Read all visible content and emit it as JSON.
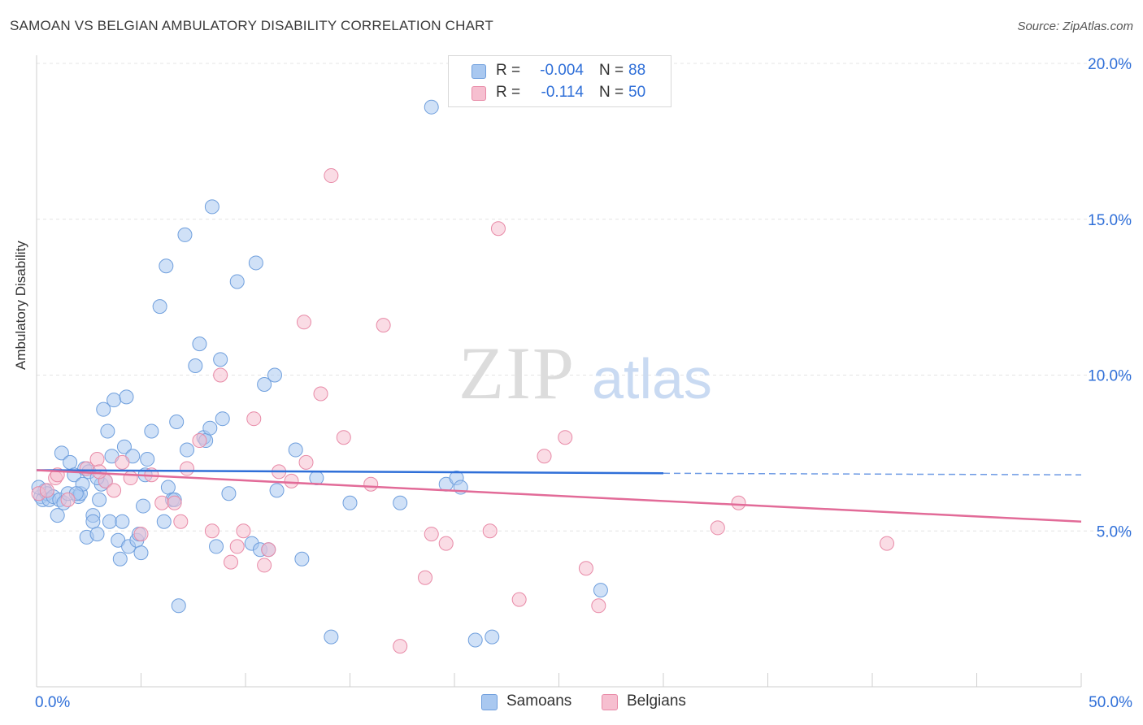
{
  "title": "SAMOAN VS BELGIAN AMBULATORY DISABILITY CORRELATION CHART",
  "source": "Source: ZipAtlas.com",
  "watermark": {
    "zip": "ZIP",
    "atlas": "atlas"
  },
  "legend": {
    "rows": [
      {
        "r_label": "R =",
        "r_value": "-0.004",
        "n_label": "N =",
        "n_value": "88",
        "color": "#a9c8f0",
        "border": "#6f9fdd"
      },
      {
        "r_label": "R =",
        "r_value": "-0.114",
        "n_label": "N =",
        "n_value": "50",
        "color": "#f6bfd0",
        "border": "#e88aa7"
      }
    ]
  },
  "bottom_legend": [
    {
      "label": "Samoans",
      "color": "#a9c8f0",
      "border": "#6f9fdd"
    },
    {
      "label": "Belgians",
      "color": "#f6bfd0",
      "border": "#e88aa7"
    }
  ],
  "chart_data": {
    "type": "scatter",
    "title": "SAMOAN VS BELGIAN AMBULATORY DISABILITY CORRELATION CHART",
    "xlabel": "",
    "ylabel": "Ambulatory Disability",
    "xlim": [
      0,
      50
    ],
    "ylim": [
      0,
      20
    ],
    "x_tick_labels": [
      {
        "value": 0,
        "label": "0.0%"
      },
      {
        "value": 50,
        "label": "50.0%"
      }
    ],
    "y_tick_labels": [
      {
        "value": 5,
        "label": "5.0%"
      },
      {
        "value": 10,
        "label": "10.0%"
      },
      {
        "value": 15,
        "label": "15.0%"
      },
      {
        "value": 20,
        "label": "20.0%"
      }
    ],
    "grid": true,
    "colors": {
      "samoans": "#2f6fd8",
      "belgians": "#e26b98",
      "axis_label": "#2f6fd8"
    },
    "series": [
      {
        "name": "Samoans",
        "color": "#a9c8f0",
        "edge": "#6f9fdd",
        "trend": {
          "x0": 0,
          "y0": 6.95,
          "x1": 30,
          "y1": 6.85,
          "dash_to": 50,
          "dash_y": 6.8,
          "color": "#2f6fd8"
        },
        "points": [
          [
            0.2,
            6.1
          ],
          [
            0.3,
            6.0
          ],
          [
            0.4,
            6.3
          ],
          [
            0.5,
            6.2
          ],
          [
            0.6,
            6.0
          ],
          [
            0.8,
            6.1
          ],
          [
            1.0,
            5.5
          ],
          [
            1.1,
            6.0
          ],
          [
            1.2,
            7.5
          ],
          [
            1.3,
            5.9
          ],
          [
            1.5,
            6.2
          ],
          [
            1.6,
            7.2
          ],
          [
            1.8,
            6.8
          ],
          [
            2.0,
            6.1
          ],
          [
            2.1,
            6.2
          ],
          [
            2.2,
            6.5
          ],
          [
            2.3,
            7.0
          ],
          [
            2.4,
            4.8
          ],
          [
            2.5,
            6.9
          ],
          [
            2.7,
            5.5
          ],
          [
            2.7,
            5.3
          ],
          [
            2.9,
            4.9
          ],
          [
            3.0,
            6.0
          ],
          [
            3.1,
            6.5
          ],
          [
            3.2,
            8.9
          ],
          [
            3.3,
            6.6
          ],
          [
            3.4,
            8.2
          ],
          [
            3.5,
            5.3
          ],
          [
            3.6,
            7.4
          ],
          [
            3.7,
            9.2
          ],
          [
            3.9,
            4.7
          ],
          [
            4.0,
            4.1
          ],
          [
            4.1,
            5.3
          ],
          [
            4.2,
            7.7
          ],
          [
            4.3,
            9.3
          ],
          [
            4.4,
            4.5
          ],
          [
            4.6,
            7.4
          ],
          [
            4.8,
            4.7
          ],
          [
            5.0,
            4.3
          ],
          [
            5.1,
            5.8
          ],
          [
            5.2,
            6.8
          ],
          [
            5.3,
            7.3
          ],
          [
            5.5,
            8.2
          ],
          [
            5.9,
            12.2
          ],
          [
            6.1,
            5.3
          ],
          [
            6.2,
            13.5
          ],
          [
            6.3,
            6.4
          ],
          [
            6.5,
            6.0
          ],
          [
            6.6,
            6.0
          ],
          [
            6.7,
            8.5
          ],
          [
            6.8,
            2.6
          ],
          [
            7.1,
            14.5
          ],
          [
            7.2,
            7.6
          ],
          [
            7.6,
            10.3
          ],
          [
            7.8,
            11.0
          ],
          [
            8.0,
            8.0
          ],
          [
            8.1,
            7.9
          ],
          [
            8.3,
            8.3
          ],
          [
            8.4,
            15.4
          ],
          [
            8.6,
            4.5
          ],
          [
            8.8,
            10.5
          ],
          [
            8.9,
            8.6
          ],
          [
            9.2,
            6.2
          ],
          [
            9.6,
            13.0
          ],
          [
            10.3,
            4.6
          ],
          [
            10.5,
            13.6
          ],
          [
            10.7,
            4.4
          ],
          [
            10.9,
            9.7
          ],
          [
            11.1,
            4.4
          ],
          [
            11.4,
            10.0
          ],
          [
            11.5,
            6.3
          ],
          [
            12.4,
            7.6
          ],
          [
            12.7,
            4.1
          ],
          [
            13.4,
            6.7
          ],
          [
            14.1,
            1.6
          ],
          [
            15.0,
            5.9
          ],
          [
            17.4,
            5.9
          ],
          [
            18.9,
            18.6
          ],
          [
            19.6,
            6.5
          ],
          [
            20.1,
            6.7
          ],
          [
            20.3,
            6.4
          ],
          [
            21.0,
            1.5
          ],
          [
            21.8,
            1.6
          ],
          [
            27.0,
            3.1
          ],
          [
            0.1,
            6.4
          ],
          [
            1.9,
            6.2
          ],
          [
            2.9,
            6.7
          ],
          [
            4.9,
            4.9
          ]
        ]
      },
      {
        "name": "Belgians",
        "color": "#f6bfd0",
        "edge": "#e88aa7",
        "trend": {
          "x0": 0,
          "y0": 6.95,
          "x1": 50,
          "y1": 5.3,
          "color": "#e26b98"
        },
        "points": [
          [
            0.1,
            6.2
          ],
          [
            0.5,
            6.3
          ],
          [
            0.9,
            6.7
          ],
          [
            1.5,
            6.0
          ],
          [
            2.4,
            7.0
          ],
          [
            2.9,
            7.3
          ],
          [
            3.3,
            6.6
          ],
          [
            3.7,
            6.3
          ],
          [
            4.1,
            7.2
          ],
          [
            4.5,
            6.7
          ],
          [
            5.0,
            4.9
          ],
          [
            5.5,
            6.8
          ],
          [
            6.0,
            5.9
          ],
          [
            6.6,
            5.9
          ],
          [
            6.9,
            5.3
          ],
          [
            7.2,
            7.0
          ],
          [
            7.8,
            7.9
          ],
          [
            8.4,
            5.0
          ],
          [
            8.8,
            10.0
          ],
          [
            9.3,
            4.0
          ],
          [
            9.6,
            4.5
          ],
          [
            9.9,
            5.0
          ],
          [
            10.4,
            8.6
          ],
          [
            10.9,
            3.9
          ],
          [
            11.1,
            4.4
          ],
          [
            11.6,
            6.9
          ],
          [
            12.2,
            6.6
          ],
          [
            12.8,
            11.7
          ],
          [
            12.9,
            7.2
          ],
          [
            13.6,
            9.4
          ],
          [
            14.1,
            16.4
          ],
          [
            14.7,
            8.0
          ],
          [
            16.0,
            6.5
          ],
          [
            16.6,
            11.6
          ],
          [
            17.4,
            1.3
          ],
          [
            18.6,
            3.5
          ],
          [
            18.9,
            4.9
          ],
          [
            19.6,
            4.6
          ],
          [
            21.7,
            5.0
          ],
          [
            22.1,
            14.7
          ],
          [
            23.1,
            2.8
          ],
          [
            24.3,
            7.4
          ],
          [
            25.3,
            8.0
          ],
          [
            26.3,
            3.8
          ],
          [
            26.9,
            2.6
          ],
          [
            32.6,
            5.1
          ],
          [
            33.6,
            5.9
          ],
          [
            40.7,
            4.6
          ],
          [
            3.0,
            6.9
          ],
          [
            1.0,
            6.8
          ]
        ]
      }
    ]
  }
}
